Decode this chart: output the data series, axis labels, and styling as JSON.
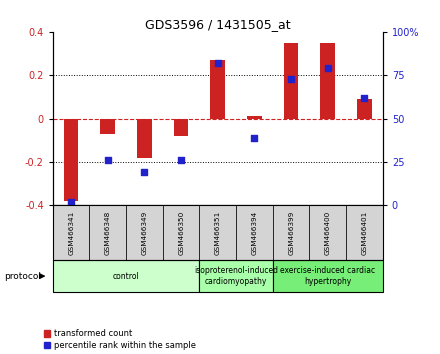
{
  "title": "GDS3596 / 1431505_at",
  "samples": [
    "GSM466341",
    "GSM466348",
    "GSM466349",
    "GSM466350",
    "GSM466351",
    "GSM466394",
    "GSM466399",
    "GSM466400",
    "GSM466401"
  ],
  "red_values": [
    -0.38,
    -0.07,
    -0.18,
    -0.08,
    0.27,
    0.01,
    0.35,
    0.35,
    0.09
  ],
  "blue_values_raw": [
    2,
    26,
    19,
    26,
    82,
    39,
    73,
    79,
    62
  ],
  "groups": [
    {
      "label": "control",
      "samples": [
        0,
        1,
        2,
        3
      ],
      "color": "#ccffcc"
    },
    {
      "label": "isoproterenol-induced\ncardiomyopathy",
      "samples": [
        4,
        5
      ],
      "color": "#aaffaa"
    },
    {
      "label": "exercise-induced cardiac\nhypertrophy",
      "samples": [
        6,
        7,
        8
      ],
      "color": "#77ee77"
    }
  ],
  "ylim_left": [
    -0.4,
    0.4
  ],
  "ylim_right": [
    0,
    100
  ],
  "yticks_left": [
    -0.4,
    -0.2,
    0.0,
    0.2,
    0.4
  ],
  "ytick_labels_left": [
    "-0.4",
    "-0.2",
    "0",
    "0.2",
    "0.4"
  ],
  "yticks_right": [
    0,
    25,
    50,
    75,
    100
  ],
  "ytick_labels_right": [
    "0",
    "25",
    "50",
    "75",
    "100%"
  ],
  "red_color": "#cc2222",
  "blue_color": "#2222cc",
  "bar_width": 0.4,
  "sample_box_color": "#d4d4d4",
  "legend_red": "transformed count",
  "legend_blue": "percentile rank within the sample"
}
